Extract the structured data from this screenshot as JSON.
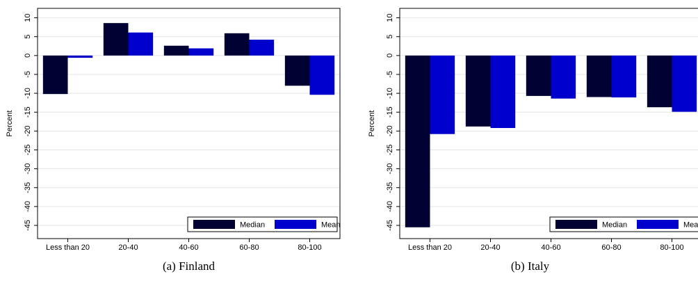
{
  "chart_data": [
    {
      "type": "bar",
      "caption": "(a) Finland",
      "y_label": "Percent",
      "categories": [
        "Less than 20",
        "20-40",
        "40-60",
        "60-80",
        "80-100"
      ],
      "series": [
        {
          "name": "Median",
          "color": "#000033",
          "values": [
            -10.2,
            8.6,
            2.6,
            5.9,
            -8.0
          ]
        },
        {
          "name": "Mean",
          "color": "#0000cc",
          "values": [
            -0.6,
            6.1,
            1.9,
            4.2,
            -10.4
          ]
        }
      ],
      "ylim": [
        -48.5,
        12.5
      ],
      "yticks": [
        10,
        5,
        0,
        -5,
        -10,
        -15,
        -20,
        -25,
        -30,
        -35,
        -40,
        -45
      ],
      "grid": true,
      "legend_position": "bottom-right"
    },
    {
      "type": "bar",
      "caption": "(b) Italy",
      "y_label": "Percent",
      "categories": [
        "Less than 20",
        "20-40",
        "40-60",
        "60-80",
        "80-100"
      ],
      "series": [
        {
          "name": "Median",
          "color": "#000033",
          "values": [
            -45.5,
            -18.8,
            -10.7,
            -11.0,
            -13.7
          ]
        },
        {
          "name": "Mean",
          "color": "#0000cc",
          "values": [
            -20.8,
            -19.2,
            -11.4,
            -11.1,
            -14.9
          ]
        }
      ],
      "ylim": [
        -48.5,
        12.5
      ],
      "yticks": [
        10,
        5,
        0,
        -5,
        -10,
        -15,
        -20,
        -25,
        -30,
        -35,
        -40,
        -45
      ],
      "grid": true,
      "legend_position": "bottom-right"
    }
  ]
}
